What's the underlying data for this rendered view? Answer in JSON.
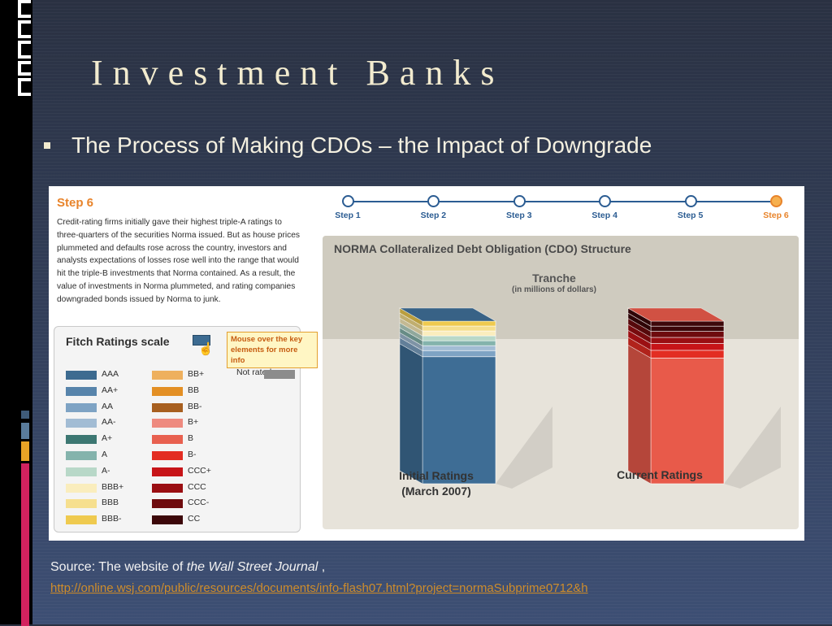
{
  "slide": {
    "title": "Investment Banks",
    "bullet": "The Process of Making CDOs – the Impact of Downgrade"
  },
  "colors": {
    "accent_orange": "#e8842b",
    "step_blue": "#2b5c92",
    "initial_bar": "#3e6d95",
    "current_bar": "#e85a4a"
  },
  "step_text": {
    "title": "Step 6",
    "description": "Credit-rating firms initially gave their highest triple-A ratings to three-quarters of the securities Norma issued. But as house prices plummeted and defaults rose across the country, investors and analysts expectations of losses rose well into the range that would hit the triple-B investments that Norma contained. As a result, the value of investments in Norma plummeted, and rating companies downgraded bonds issued by Norma to junk."
  },
  "stepper": {
    "steps": [
      {
        "label": "Step 1",
        "active": false
      },
      {
        "label": "Step 2",
        "active": false
      },
      {
        "label": "Step 3",
        "active": false
      },
      {
        "label": "Step 4",
        "active": false
      },
      {
        "label": "Step 5",
        "active": false
      },
      {
        "label": "Step 6",
        "active": true
      }
    ]
  },
  "ratings_scale": {
    "title": "Fitch Ratings scale",
    "tooltip": "Mouse over the key elements for more info",
    "columns": [
      [
        {
          "label": "AAA",
          "color": "#3d6b90"
        },
        {
          "label": "AA+",
          "color": "#5784ab"
        },
        {
          "label": "AA",
          "color": "#7ea3c4"
        },
        {
          "label": "AA-",
          "color": "#a2bcd4"
        },
        {
          "label": "A+",
          "color": "#3c7772"
        },
        {
          "label": "A",
          "color": "#84b3ac"
        },
        {
          "label": "A-",
          "color": "#b8d8c8"
        },
        {
          "label": "BBB+",
          "color": "#faedbd"
        },
        {
          "label": "BBB",
          "color": "#f6df8e"
        },
        {
          "label": "BBB-",
          "color": "#efca4f"
        }
      ],
      [
        {
          "label": "BB+",
          "color": "#eeb05e"
        },
        {
          "label": "BB",
          "color": "#e38f24"
        },
        {
          "label": "BB-",
          "color": "#a75f1f"
        },
        {
          "label": "B+",
          "color": "#ee8a7f"
        },
        {
          "label": "B",
          "color": "#e8604f"
        },
        {
          "label": "B-",
          "color": "#e32d22"
        },
        {
          "label": "CCC+",
          "color": "#c71418"
        },
        {
          "label": "CCC",
          "color": "#9a0e12"
        },
        {
          "label": "CCC-",
          "color": "#6e0b0e"
        },
        {
          "label": "CC",
          "color": "#3c0709"
        }
      ]
    ],
    "not_rated": {
      "label": "Not rated",
      "color": "#8c8c8c"
    }
  },
  "cdo_chart": {
    "title": "NORMA Collateralized Debt Obligation (CDO) Structure",
    "tranche_label": "Tranche",
    "tranche_units": "(in millions of dollars)",
    "bars": [
      {
        "name": "Initial Ratings",
        "caption_line1": "Initial Ratings",
        "caption_line2": "(March 2007)",
        "segments": [
          {
            "rating": "AAA",
            "value": 75,
            "color": "#3e6d95"
          },
          {
            "rating": "AA",
            "value": 3.6,
            "color": "#7ea3c4"
          },
          {
            "rating": "AA-",
            "value": 2.9,
            "color": "#a2bcd4"
          },
          {
            "rating": "A",
            "value": 2.9,
            "color": "#84b3ac"
          },
          {
            "rating": "A-",
            "value": 2.9,
            "color": "#b8d8c8"
          },
          {
            "rating": "BBB+",
            "value": 2.9,
            "color": "#faedbd"
          },
          {
            "rating": "BBB",
            "value": 2.9,
            "color": "#f6df8e"
          },
          {
            "rating": "BBB-",
            "value": 2.9,
            "color": "#efca4f"
          }
        ]
      },
      {
        "name": "Current Ratings",
        "caption_line1": "Current Ratings",
        "caption_line2": "",
        "segments": [
          {
            "rating": "B",
            "value": 75,
            "color": "#e85a4a"
          },
          {
            "rating": "B-",
            "value": 4.6,
            "color": "#e32d22"
          },
          {
            "rating": "CCC+",
            "value": 4.1,
            "color": "#c71418"
          },
          {
            "rating": "CCC",
            "value": 3.6,
            "color": "#9a0e12"
          },
          {
            "rating": "CCC-",
            "value": 3.6,
            "color": "#6e0b0e"
          },
          {
            "rating": "CC",
            "value": 3.1,
            "color": "#3c0709"
          },
          {
            "rating": "CC",
            "value": 3.0,
            "color": "#3c0709"
          }
        ]
      }
    ]
  },
  "source": {
    "prefix": "Source: The website of ",
    "publication": "the Wall Street Journal",
    "suffix": " ,",
    "url": "http://online.wsj.com/public/resources/documents/info-flash07.html?project=normaSubprime0712&h"
  }
}
